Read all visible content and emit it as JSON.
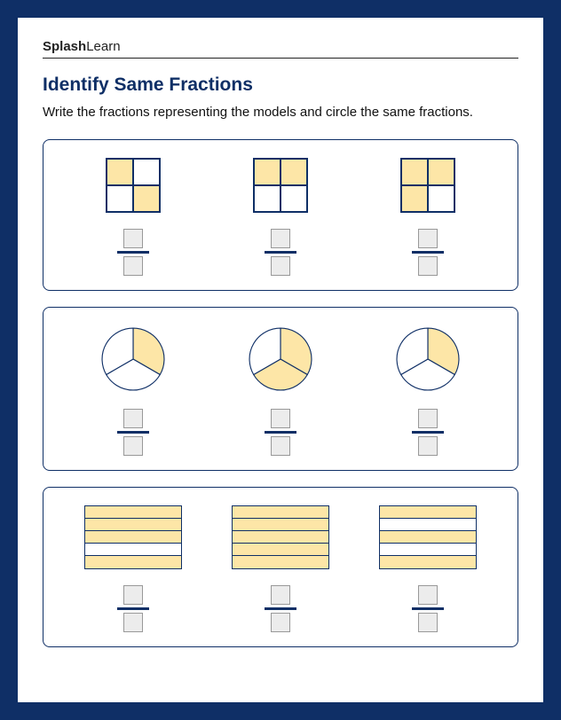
{
  "brand": {
    "bold": "Splash",
    "light": "Learn"
  },
  "title": "Identify Same Fractions",
  "instruction": "Write the fractions representing the models and circle the same fractions.",
  "colors": {
    "fill": "#fde6a7",
    "stroke": "#0f2f66",
    "outer_bg": "#0f2f66"
  },
  "row1": {
    "type": "grid2x2",
    "models": [
      {
        "cells": [
          true,
          false,
          false,
          true
        ]
      },
      {
        "cells": [
          true,
          true,
          false,
          false
        ]
      },
      {
        "cells": [
          true,
          true,
          true,
          false
        ]
      }
    ]
  },
  "row2": {
    "type": "pie-thirds",
    "models": [
      {
        "shaded": [
          true,
          false,
          false
        ]
      },
      {
        "shaded": [
          true,
          true,
          false
        ]
      },
      {
        "shaded": [
          true,
          false,
          false
        ]
      }
    ]
  },
  "row3": {
    "type": "hbar-fifths",
    "models": [
      {
        "rows": [
          true,
          true,
          true,
          false,
          true
        ]
      },
      {
        "rows": [
          true,
          true,
          true,
          true,
          true
        ]
      },
      {
        "rows": [
          true,
          false,
          true,
          false,
          true
        ]
      }
    ]
  }
}
